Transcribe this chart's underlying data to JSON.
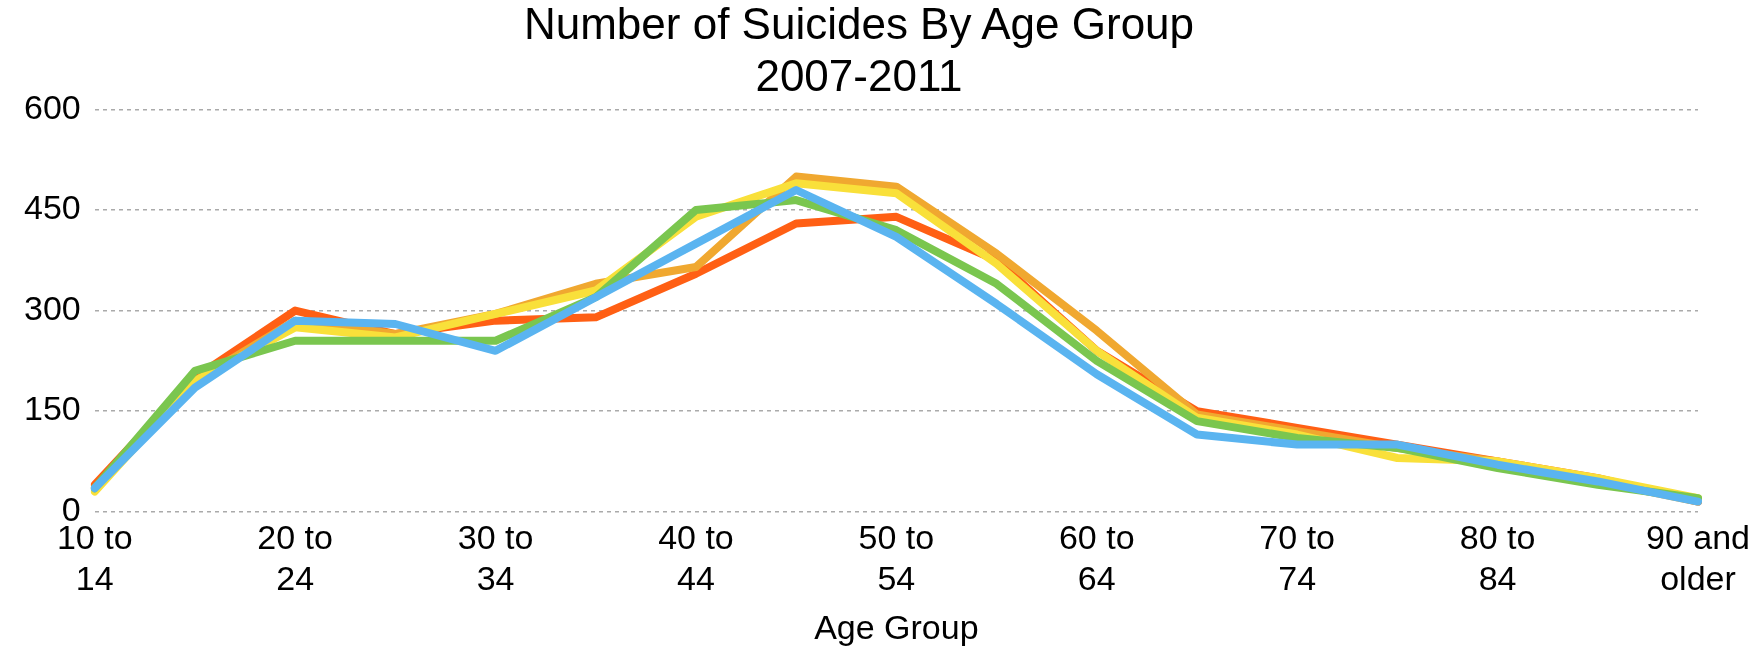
{
  "chart_data": {
    "type": "line",
    "title": "Number of Suicides By Age Group\n2007-2011",
    "xlabel": "Age Group",
    "categories": [
      "10 to 14",
      null,
      "20 to 24",
      null,
      "30 to 34",
      null,
      "40 to 44",
      null,
      "50 to 54",
      null,
      "60 to 64",
      null,
      "70 to 74",
      null,
      "80 to 84",
      null,
      "90 and older"
    ],
    "series": [
      {
        "color": "#5ab4f0",
        "values": [
          35,
          185,
          285,
          280,
          240,
          320,
          400,
          480,
          410,
          310,
          205,
          115,
          100,
          100,
          70,
          45,
          15
        ]
      },
      {
        "color": "#7ac64f",
        "values": [
          35,
          210,
          255,
          255,
          255,
          320,
          450,
          465,
          420,
          340,
          225,
          135,
          110,
          95,
          65,
          40,
          20
        ]
      },
      {
        "color": "#f9e03a",
        "values": [
          30,
          195,
          275,
          260,
          295,
          330,
          440,
          490,
          475,
          370,
          240,
          140,
          115,
          80,
          75,
          50,
          20
        ]
      },
      {
        "color": "#f0a830",
        "values": [
          35,
          195,
          285,
          265,
          295,
          340,
          365,
          500,
          485,
          385,
          270,
          145,
          120,
          95,
          75,
          45,
          15
        ]
      },
      {
        "color": "#ff5f14",
        "values": [
          40,
          200,
          300,
          265,
          285,
          290,
          355,
          430,
          440,
          375,
          240,
          150,
          125,
          100,
          75,
          50,
          15
        ]
      }
    ],
    "ylim": [
      0,
      600
    ],
    "yticks": [
      0,
      150,
      300,
      450,
      600
    ],
    "grid": "y",
    "legend": false,
    "marker": "none",
    "line_style": "solid"
  }
}
